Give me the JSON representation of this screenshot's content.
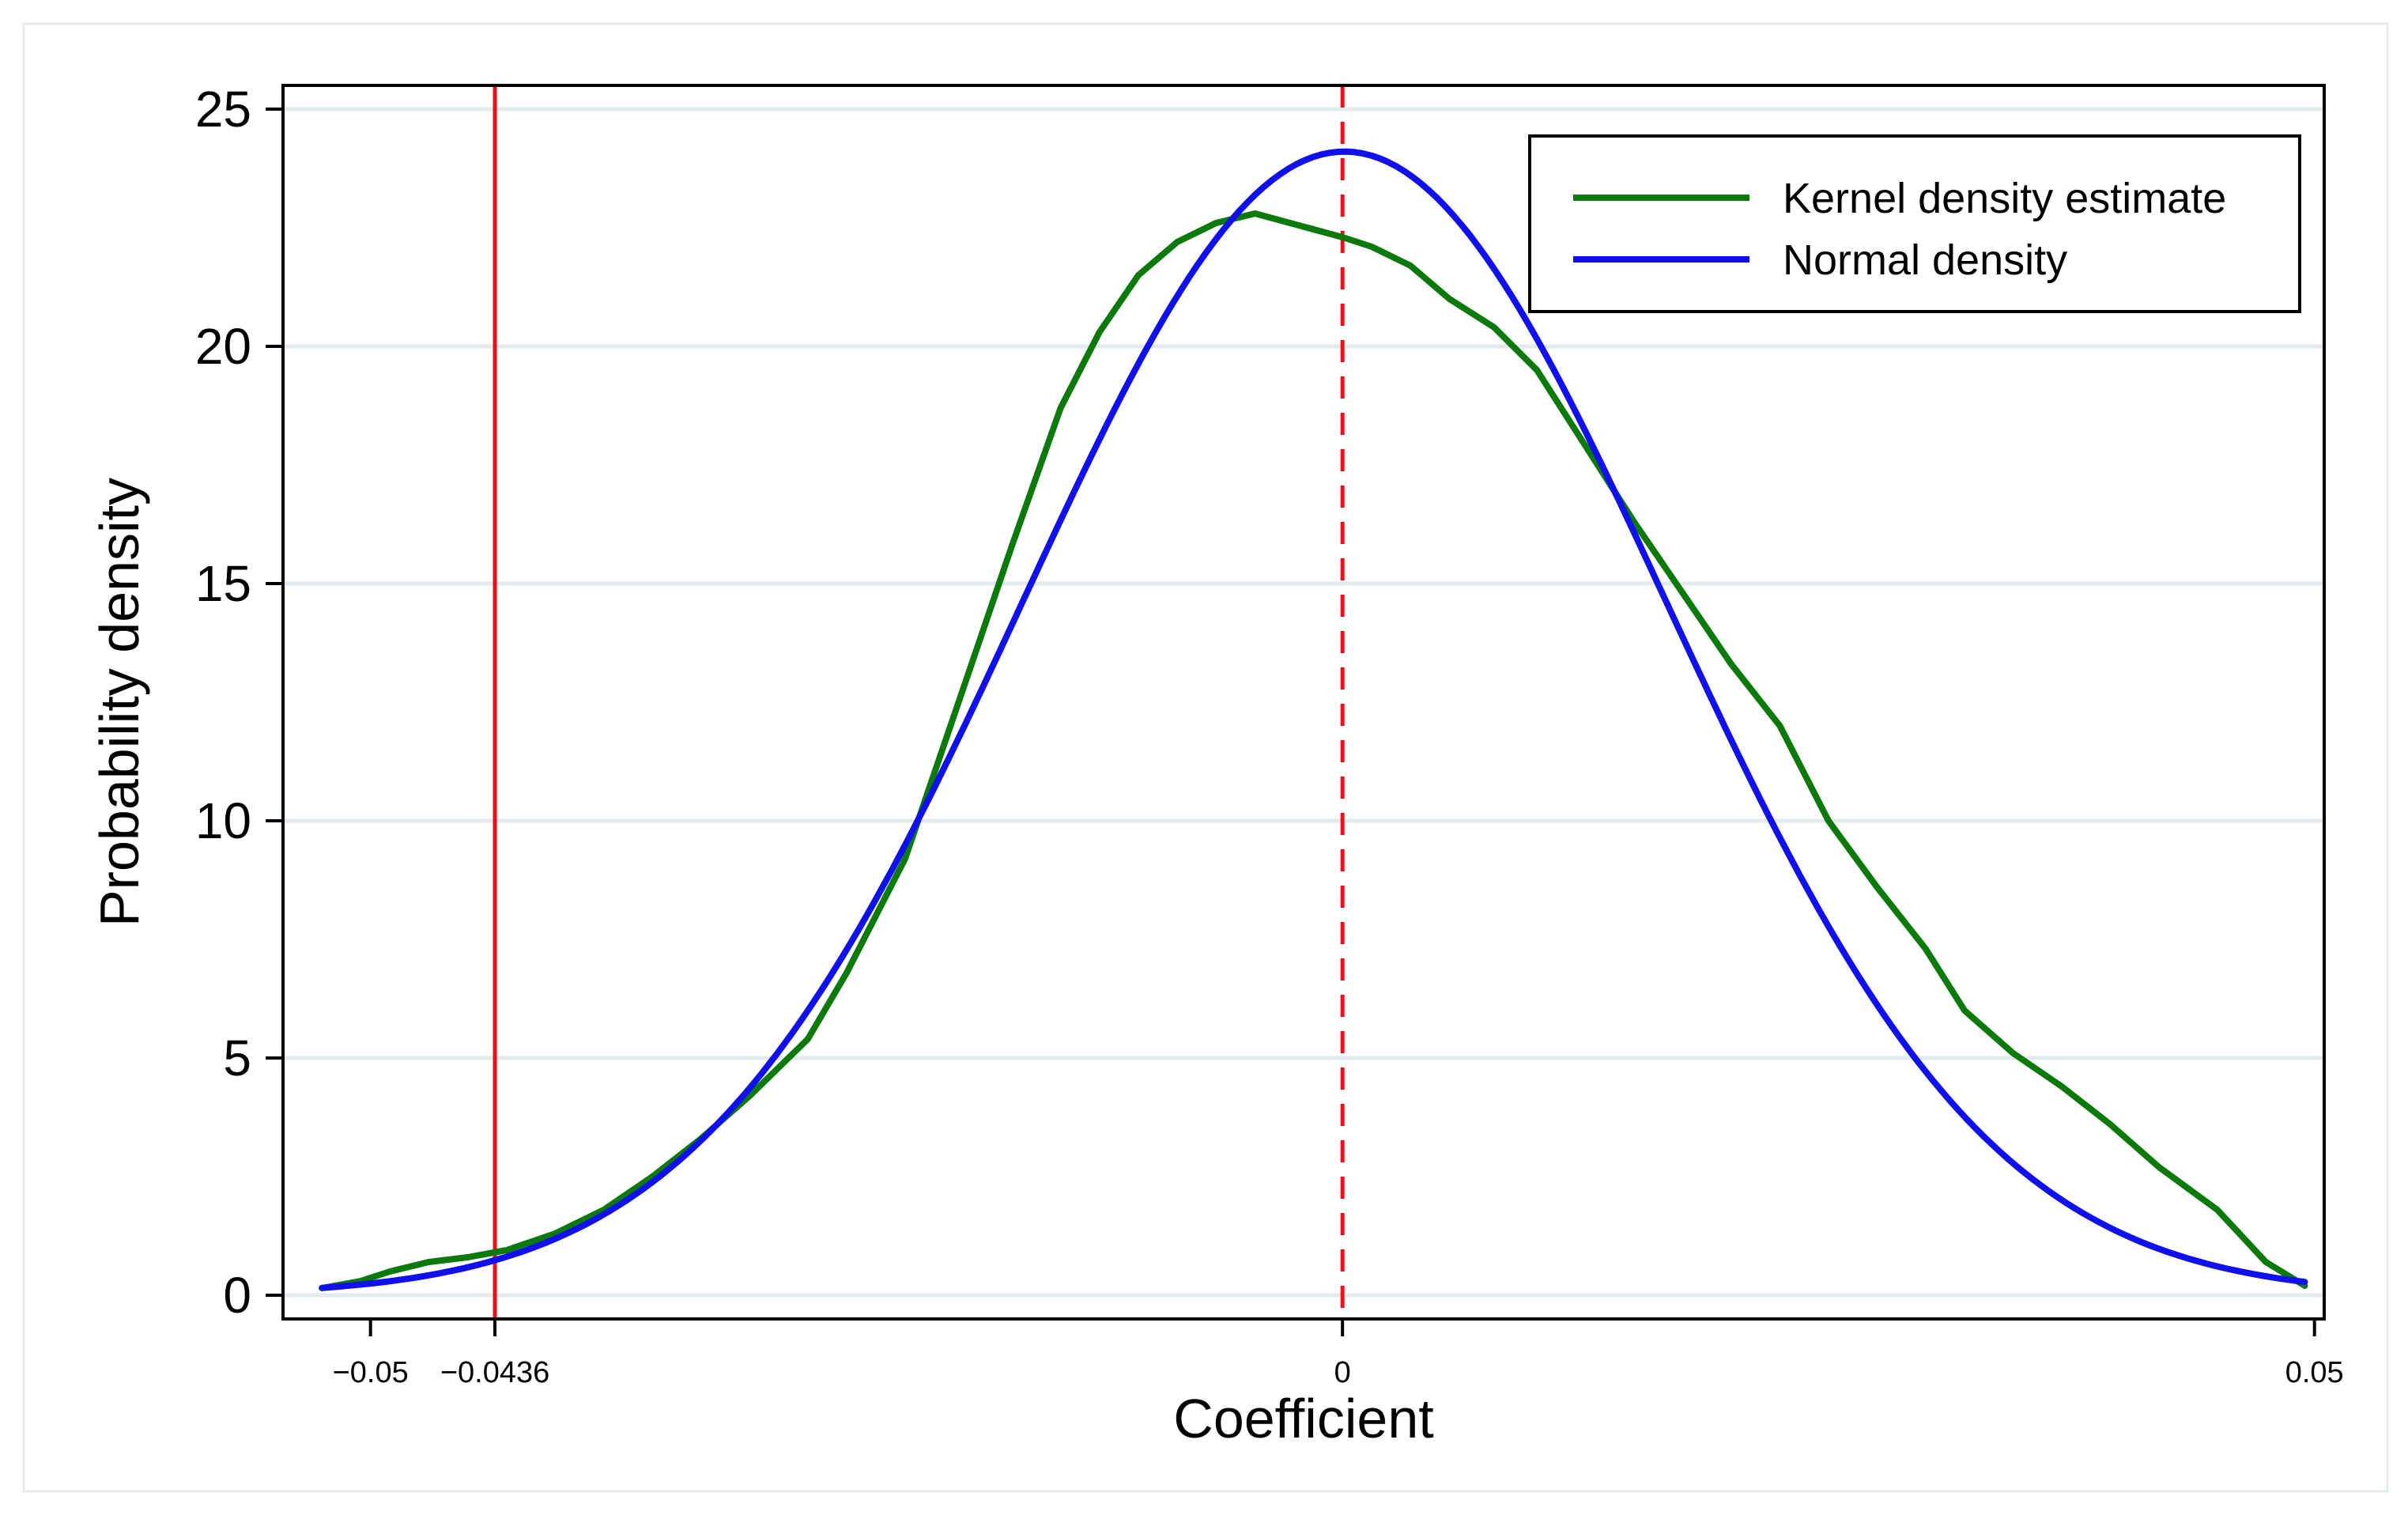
{
  "chart_data": {
    "type": "line",
    "title": "",
    "xlabel": "Coefficient",
    "ylabel": "Probability density",
    "xlim": [
      -0.0545,
      0.0505
    ],
    "ylim": [
      -0.5,
      25.5
    ],
    "grid": true,
    "y_ticks": [
      0,
      5,
      10,
      15,
      20,
      25
    ],
    "x_ticks": [
      {
        "value": -0.05,
        "label": "−0.05"
      },
      {
        "value": -0.0436,
        "label": "−0.0436"
      },
      {
        "value": 0,
        "label": "0"
      },
      {
        "value": 0.05,
        "label": "0.05"
      }
    ],
    "legend_position": "top-right",
    "series": [
      {
        "name": "Kernel density estimate",
        "color": "#0b7a0b",
        "x": [
          -0.0525,
          -0.0505,
          -0.049,
          -0.047,
          -0.045,
          -0.043,
          -0.0405,
          -0.038,
          -0.0355,
          -0.033,
          -0.0305,
          -0.0275,
          -0.0255,
          -0.0225,
          -0.0195,
          -0.017,
          -0.0145,
          -0.0125,
          -0.0105,
          -0.0085,
          -0.0065,
          -0.0045,
          -0.0027,
          0,
          0.0015,
          0.0035,
          0.0055,
          0.0078,
          0.01,
          0.0125,
          0.015,
          0.0175,
          0.02,
          0.0225,
          0.025,
          0.0275,
          0.03,
          0.032,
          0.0345,
          0.037,
          0.0395,
          0.042,
          0.045,
          0.0475,
          0.0495
        ],
        "y": [
          0.15,
          0.3,
          0.5,
          0.7,
          0.8,
          0.95,
          1.3,
          1.8,
          2.5,
          3.3,
          4.2,
          5.4,
          6.8,
          9.2,
          12.8,
          15.8,
          18.7,
          20.3,
          21.5,
          22.2,
          22.6,
          22.8,
          22.6,
          22.3,
          22.1,
          21.7,
          21.0,
          20.4,
          19.5,
          17.9,
          16.3,
          14.8,
          13.3,
          12.0,
          10.0,
          8.6,
          7.3,
          6.0,
          5.1,
          4.4,
          3.6,
          2.7,
          1.8,
          0.7,
          0.2
        ]
      },
      {
        "name": "Normal density",
        "color": "#1010ee",
        "mean": 0.0001,
        "sd": 0.01655,
        "x_range": [
          -0.0525,
          0.0495
        ]
      }
    ],
    "reference_lines": [
      {
        "x": -0.0436,
        "style": "solid",
        "color": "#e8121a"
      },
      {
        "x": 0,
        "style": "dashed",
        "color": "#e8121a"
      }
    ]
  }
}
